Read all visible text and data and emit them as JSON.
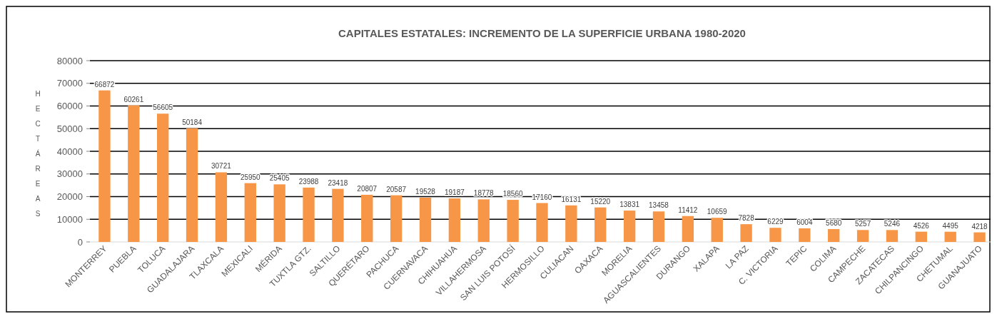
{
  "chart_data": {
    "type": "bar",
    "title": "CAPITALES ESTATALES: INCREMENTO DE LA SUPERFICIE URBANA 1980-2020",
    "ylabel": "HECTÁREAS",
    "categories": [
      "MONTERREY",
      "PUEBLA",
      "TOLUCA",
      "GUADALAJARA",
      "TLAXCALA",
      "MEXICALI",
      "MÉRIDA",
      "TUXTLA GTZ.",
      "SALTILLO",
      "QUERÉTARO",
      "PACHUCA",
      "CUERNAVACA",
      "CHIHUAHUA",
      "VILLAHERMOSA",
      "SAN LUIS POTOSÍ",
      "HERMOSILLO",
      "CULIACAN",
      "OAXACA",
      "MORELIA",
      "AGUASCALIENTES",
      "DURANGO",
      "XALAPA",
      "LA PAZ",
      "C. VICTORIA",
      "TEPIC",
      "COLIMA",
      "CAMPECHE",
      "ZACATECAS",
      "CHILPANCINGO",
      "CHETUMAL",
      "GUANAJUATO"
    ],
    "values": [
      66872,
      60261,
      56605,
      50184,
      30721,
      25950,
      25405,
      23988,
      23418,
      20807,
      20587,
      19528,
      19187,
      18778,
      18560,
      17160,
      16131,
      15220,
      13831,
      13458,
      11412,
      10659,
      7828,
      6229,
      6004,
      5680,
      5257,
      5246,
      4526,
      4495,
      4218
    ],
    "color": "#f79646",
    "ylim": [
      0,
      80000
    ],
    "yticks": [
      0,
      10000,
      20000,
      30000,
      40000,
      50000,
      60000,
      70000,
      80000
    ],
    "grid": true,
    "data_labels": true
  }
}
